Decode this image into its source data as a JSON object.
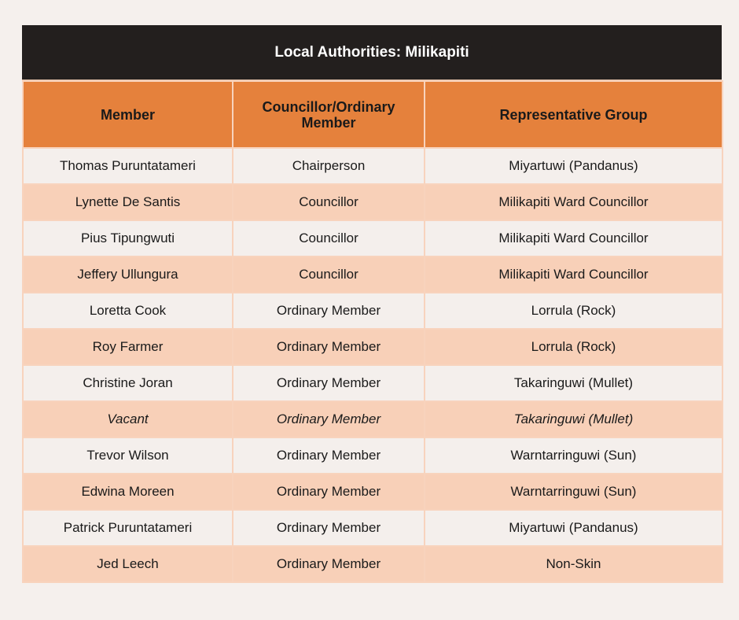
{
  "title": "Local Authorities: Milikapiti",
  "columns": [
    "Member",
    "Councillor/Ordinary Member",
    "Representative Group"
  ],
  "rows": [
    [
      "Thomas Puruntatameri",
      "Chairperson",
      "Miyartuwi (Pandanus)"
    ],
    [
      "Lynette De Santis",
      "Councillor",
      "Milikapiti Ward Councillor"
    ],
    [
      "Pius Tipungwuti",
      "Councillor",
      "Milikapiti Ward Councillor"
    ],
    [
      "Jeffery Ullungura",
      "Councillor",
      "Milikapiti Ward Councillor"
    ],
    [
      "Loretta Cook",
      "Ordinary Member",
      "Lorrula (Rock)"
    ],
    [
      "Roy Farmer",
      "Ordinary Member",
      "Lorrula (Rock)"
    ],
    [
      "Christine Joran",
      "Ordinary Member",
      "Takaringuwi (Mullet)"
    ],
    [
      "Vacant",
      "Ordinary Member",
      "Takaringuwi (Mullet)"
    ],
    [
      "Trevor Wilson",
      "Ordinary Member",
      "Warntarringuwi (Sun)"
    ],
    [
      "Edwina Moreen",
      "Ordinary Member",
      "Warntarringuwi (Sun)"
    ],
    [
      "Patrick Puruntatameri",
      "Ordinary Member",
      "Miyartuwi (Pandanus)"
    ],
    [
      "Jed Leech",
      "Ordinary Member",
      "Non-Skin"
    ]
  ],
  "italic_rows": [
    7
  ],
  "colors": {
    "title_bg": "#231f1e",
    "header_bg": "#e5813c",
    "row_odd": "#f4efec",
    "row_even": "#f8d0b8"
  }
}
